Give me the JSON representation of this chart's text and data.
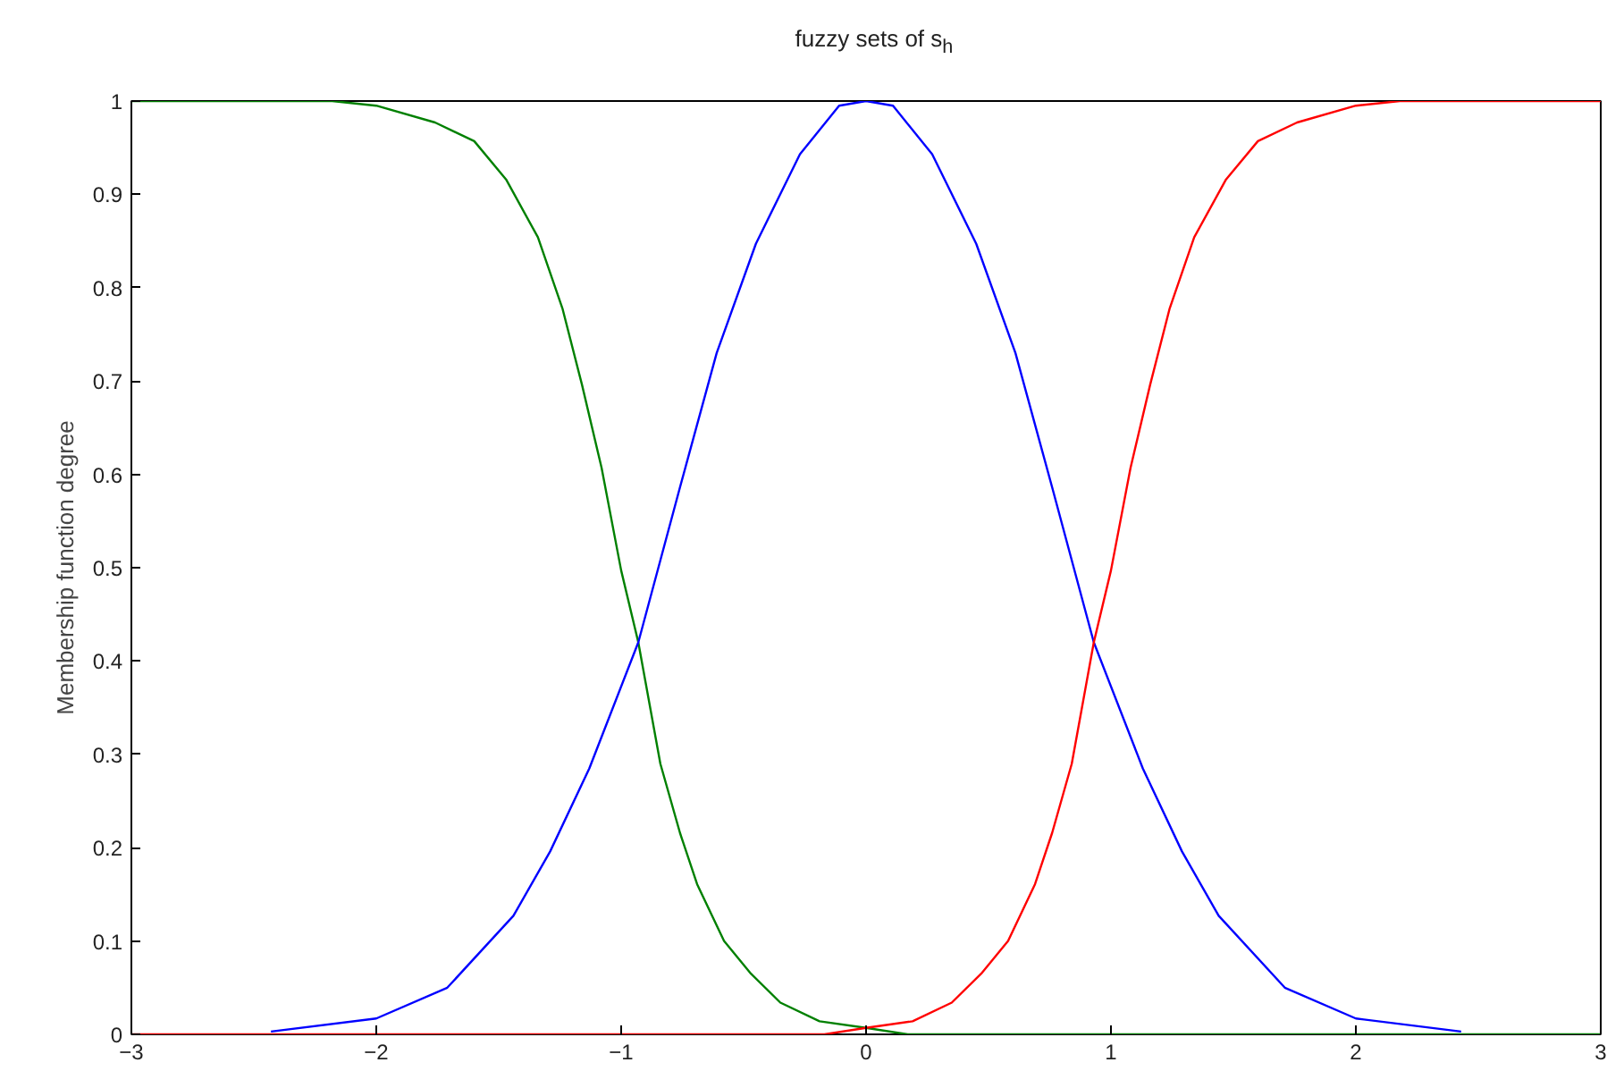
{
  "chart_data": {
    "type": "line",
    "title": "fuzzy sets of s$_{h}$",
    "ylabel": "Membership function degree",
    "xlim": [
      -3,
      3
    ],
    "ylim": [
      0,
      1
    ],
    "xticks": [
      -3,
      -2,
      -1,
      0,
      1,
      2,
      3
    ],
    "yticks": [
      0,
      0.1,
      0.2,
      0.3,
      0.4,
      0.5,
      0.6,
      0.7,
      0.8,
      0.9,
      1
    ],
    "grid": false,
    "line_style": "solid",
    "marker": "none",
    "series": [
      {
        "color": "#008000",
        "x": [
          -3,
          -2.18,
          -2.0,
          -1.76,
          -1.6,
          -1.47,
          -1.34,
          -1.24,
          -1.16,
          -1.08,
          -1.0,
          -0.93,
          -0.84,
          -0.76,
          -0.69,
          -0.58,
          -0.47,
          -0.35,
          -0.19,
          0,
          0.17,
          3
        ],
        "values": [
          1,
          1,
          0.995,
          0.977,
          0.957,
          0.916,
          0.854,
          0.778,
          0.696,
          0.607,
          0.497,
          0.42,
          0.29,
          0.216,
          0.161,
          0.1,
          0.065,
          0.034,
          0.014,
          0.007,
          0,
          0
        ]
      },
      {
        "color": "#0000ff",
        "x": [
          -2.43,
          -2.0,
          -1.71,
          -1.44,
          -1.29,
          -1.13,
          -0.93,
          -0.76,
          -0.61,
          -0.45,
          -0.27,
          -0.11,
          0,
          0.11,
          0.27,
          0.45,
          0.61,
          0.76,
          0.93,
          1.13,
          1.29,
          1.44,
          1.71,
          2.0,
          2.43
        ],
        "values": [
          0.003,
          0.017,
          0.05,
          0.127,
          0.196,
          0.285,
          0.42,
          0.586,
          0.73,
          0.847,
          0.943,
          0.995,
          1,
          0.995,
          0.943,
          0.847,
          0.73,
          0.586,
          0.42,
          0.285,
          0.196,
          0.127,
          0.05,
          0.017,
          0.003
        ]
      },
      {
        "color": "#ff0000",
        "x": [
          -3,
          -0.17,
          0,
          0.19,
          0.35,
          0.47,
          0.58,
          0.69,
          0.76,
          0.84,
          0.93,
          1.0,
          1.08,
          1.16,
          1.24,
          1.34,
          1.47,
          1.6,
          1.76,
          2.0,
          2.18,
          3
        ],
        "values": [
          0,
          0,
          0.007,
          0.014,
          0.034,
          0.065,
          0.1,
          0.161,
          0.216,
          0.29,
          0.42,
          0.497,
          0.607,
          0.696,
          0.778,
          0.854,
          0.916,
          0.957,
          0.977,
          0.995,
          1,
          1
        ]
      }
    ]
  }
}
